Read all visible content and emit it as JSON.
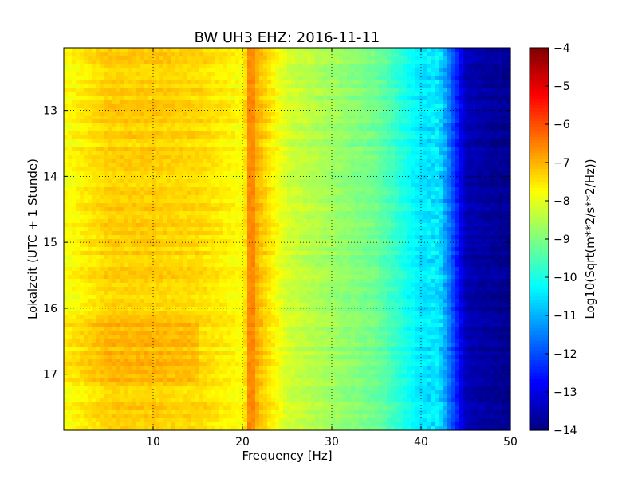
{
  "chart_data": {
    "type": "heatmap",
    "title": "BW UH3 EHZ: 2016-11-11",
    "xlabel": "Frequency [Hz]",
    "ylabel": "Lokalzeit (UTC + 1 Stunde)",
    "xlim": [
      0,
      50
    ],
    "ylim": [
      17.85,
      12.05
    ],
    "xticks": [
      10,
      20,
      30,
      40,
      50
    ],
    "yticks": [
      13,
      14,
      15,
      16,
      17
    ],
    "grid": true,
    "colorbar": {
      "label": "Log10(Sqrt(m**2/s**2/Hz))",
      "range": [
        -14,
        -4
      ],
      "ticks": [
        -4,
        -5,
        -6,
        -7,
        -8,
        -9,
        -10,
        -11,
        -12,
        -13,
        -14
      ],
      "colormap": "jet"
    },
    "description_values": {
      "frequency_bands_hz": [
        0.5,
        5,
        10,
        15,
        20,
        21,
        25,
        30,
        35,
        40,
        42,
        45,
        50
      ],
      "typical_log_psd": [
        -7.8,
        -7.3,
        -7.3,
        -7.4,
        -7.8,
        -6.8,
        -8.2,
        -8.7,
        -9.2,
        -10.5,
        -10.5,
        -13.5,
        -13.9
      ],
      "spectral_line_hz": 21.0,
      "loud_segment_hours": [
        16.2,
        17.1
      ]
    }
  },
  "figure": {
    "background": "#ffffff",
    "colormap_stops": [
      "#00007f",
      "#0000ff",
      "#007fff",
      "#00ffff",
      "#7fff7f",
      "#ffff00",
      "#ff7f00",
      "#ff0000",
      "#7f0000"
    ]
  }
}
